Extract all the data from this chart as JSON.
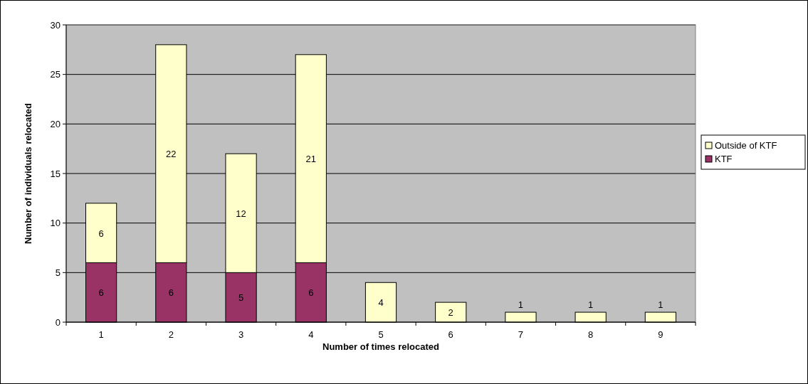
{
  "chart_data": {
    "type": "bar",
    "stacked": true,
    "xlabel": "Number of times relocated",
    "ylabel": "Number of individuals relocated",
    "categories": [
      "1",
      "2",
      "3",
      "4",
      "5",
      "6",
      "7",
      "8",
      "9"
    ],
    "series": [
      {
        "name": "KTF",
        "color": "#993366",
        "values": [
          6,
          6,
          5,
          6,
          null,
          null,
          null,
          null,
          null
        ],
        "value_labels": [
          "6",
          "6",
          "5",
          "6",
          null,
          null,
          null,
          null,
          null
        ]
      },
      {
        "name": "Outside of KTF",
        "color": "#ffffcc",
        "values": [
          6,
          22,
          12,
          21,
          4,
          2,
          1,
          1,
          1
        ],
        "value_labels": [
          "6",
          "22",
          "12",
          "21",
          "4",
          "2",
          "1",
          "1",
          "1"
        ]
      }
    ],
    "ylim": [
      0,
      30
    ],
    "yticks": [
      0,
      5,
      10,
      15,
      20,
      25,
      30
    ],
    "grid": "y",
    "legend": "right"
  }
}
